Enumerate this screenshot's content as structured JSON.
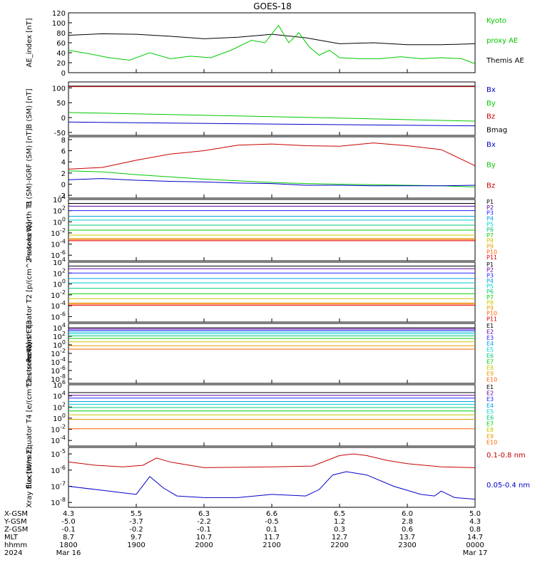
{
  "title": "GOES-18",
  "colors": {
    "black": "#000000",
    "green": "#00c800",
    "red": "#c80000",
    "blue": "#0000c8",
    "chan": [
      "#000000",
      "#6000a0",
      "#2020ff",
      "#00a0e0",
      "#00d0d0",
      "#00c878",
      "#00d000",
      "#c8c800",
      "#e0a000",
      "#ff6000",
      "#e00000",
      "#a00000"
    ]
  },
  "x_ticks": [
    "1800",
    "1900",
    "2000",
    "2100",
    "2200",
    "2300",
    "0000"
  ],
  "footer": {
    "row_labels": [
      "X-GSM",
      "Y-GSM",
      "Z-GSM",
      "MLT",
      "hhmm",
      "2024"
    ],
    "rows": [
      [
        "4.3",
        "5.5",
        "6.3",
        "6.6",
        "6.5",
        "6.0",
        "5.0"
      ],
      [
        "-5.0",
        "-3.7",
        "-2.2",
        "-0.5",
        "1.2",
        "2.8",
        "4.3"
      ],
      [
        "-0.1",
        "-0.2",
        "-0.1",
        "0.1",
        "0.3",
        "0.6",
        "0.8"
      ],
      [
        "8.7",
        "9.7",
        "10.7",
        "11.7",
        "12.7",
        "13.7",
        "14.7"
      ],
      [
        "1800",
        "1900",
        "2000",
        "2100",
        "2200",
        "2300",
        "0000"
      ]
    ],
    "date_start": "Mar 16",
    "date_end": "Mar 17"
  },
  "chart_data": [
    {
      "type": "line",
      "ylabel": "AE_index [nT]",
      "y_ticks": [
        "120",
        "100",
        "80",
        "60",
        "40",
        "20",
        "0"
      ],
      "ylim": [
        0,
        120
      ],
      "legend": [
        {
          "text": "Kyoto",
          "color": "#00c800"
        },
        {
          "text": "proxy AE",
          "color": "#00c800"
        },
        {
          "text": "Themis AE",
          "color": "#000000"
        }
      ],
      "series": [
        {
          "name": "Themis AE",
          "color": "#000000",
          "x": [
            0,
            0.5,
            1,
            1.5,
            2,
            2.5,
            3,
            3.5,
            4,
            4.5,
            5,
            5.5,
            6
          ],
          "y": [
            75,
            78,
            77,
            73,
            68,
            71,
            77,
            70,
            58,
            60,
            56,
            56,
            58
          ]
        },
        {
          "name": "Kyoto proxy AE",
          "color": "#00c800",
          "x": [
            0,
            0.3,
            0.6,
            0.9,
            1.2,
            1.5,
            1.8,
            2.1,
            2.4,
            2.7,
            2.9,
            3.1,
            3.25,
            3.4,
            3.55,
            3.7,
            3.85,
            4,
            4.3,
            4.6,
            4.9,
            5.2,
            5.5,
            5.8,
            6
          ],
          "y": [
            45,
            38,
            30,
            25,
            40,
            28,
            33,
            30,
            45,
            65,
            60,
            95,
            60,
            80,
            52,
            35,
            45,
            30,
            28,
            28,
            32,
            28,
            30,
            28,
            18
          ]
        }
      ]
    },
    {
      "type": "line",
      "ylabel": "B (SM) [nT]",
      "y_ticks": [
        "100",
        "50",
        "0",
        "-50"
      ],
      "ylim": [
        -60,
        120
      ],
      "legend": [
        {
          "text": "Bx",
          "color": "#0000c8"
        },
        {
          "text": "By",
          "color": "#00c800"
        },
        {
          "text": "Bz",
          "color": "#c80000"
        },
        {
          "text": "Bmag",
          "color": "#000000"
        }
      ],
      "series": [
        {
          "name": "Bmag",
          "color": "#000000",
          "x": [
            0,
            6
          ],
          "y": [
            106,
            106
          ]
        },
        {
          "name": "Bz",
          "color": "#c80000",
          "x": [
            0,
            6
          ],
          "y": [
            104,
            104
          ]
        },
        {
          "name": "By",
          "color": "#00c800",
          "x": [
            0,
            3,
            6
          ],
          "y": [
            17,
            3,
            -12
          ]
        },
        {
          "name": "Bx",
          "color": "#0000c8",
          "x": [
            0,
            3,
            6
          ],
          "y": [
            -15,
            -22,
            -28
          ]
        }
      ]
    },
    {
      "type": "line",
      "ylabel": "B (SM)-IGRF (SM) [nT]",
      "y_ticks": [
        "8",
        "6",
        "4",
        "2",
        "0",
        "-2"
      ],
      "ylim": [
        -2.5,
        8.5
      ],
      "legend": [
        {
          "text": "Bx",
          "color": "#0000c8"
        },
        {
          "text": "By",
          "color": "#00c800"
        },
        {
          "text": "Bz",
          "color": "#c80000"
        }
      ],
      "series": [
        {
          "name": "Bz",
          "color": "#c80000",
          "x": [
            0,
            0.5,
            1,
            1.5,
            2,
            2.5,
            3,
            3.5,
            4,
            4.5,
            5,
            5.5,
            6
          ],
          "y": [
            2.7,
            3.0,
            4.3,
            5.4,
            6.0,
            7.0,
            7.2,
            6.9,
            6.8,
            7.4,
            6.9,
            6.2,
            3.3
          ]
        },
        {
          "name": "By",
          "color": "#00c800",
          "x": [
            0,
            0.5,
            1,
            1.5,
            2,
            2.5,
            3,
            3.5,
            4,
            4.5,
            5,
            5.5,
            6
          ],
          "y": [
            2.4,
            2.2,
            1.7,
            1.3,
            0.9,
            0.6,
            0.3,
            0.1,
            0,
            -0.1,
            -0.2,
            -0.3,
            -0.5
          ]
        },
        {
          "name": "Bx",
          "color": "#0000c8",
          "x": [
            0,
            0.5,
            1,
            1.5,
            2,
            2.5,
            3,
            3.5,
            4,
            4.5,
            5,
            5.5,
            6
          ],
          "y": [
            0.8,
            1.0,
            0.7,
            0.5,
            0.4,
            0.2,
            0.1,
            -0.2,
            -0.2,
            -0.3,
            -0.3,
            -0.3,
            -0.2
          ]
        }
      ]
    },
    {
      "type": "line",
      "ylabel": "Protons North T1",
      "y_ticks": [
        "10^4",
        "10^2",
        "10^0",
        "10^-2",
        "10^-4",
        "10^-6"
      ],
      "log_exponents": [
        4,
        -7
      ],
      "legend": [
        "P1",
        "P2",
        "P3",
        "P4",
        "P5",
        "P6",
        "P7",
        "P8",
        "P9",
        "P10",
        "P11"
      ],
      "levels_log10": [
        3.3,
        2.8,
        2.0,
        1.0,
        0.3,
        -0.6,
        -1.5,
        -2.4,
        -3.0,
        -3.2,
        -3.4
      ]
    },
    {
      "type": "line",
      "ylabel": "Protons Equator T2 [p/(cm^2-s-sr-keV)]",
      "y_ticks": [
        "10^4",
        "10^2",
        "10^0",
        "10^-2",
        "10^-4",
        "10^-6"
      ],
      "log_exponents": [
        4,
        -7
      ],
      "legend": [
        "P1",
        "P2",
        "P3",
        "P4",
        "P5",
        "P6",
        "P7",
        "P8",
        "P9",
        "P10",
        "P11"
      ],
      "levels_log10": [
        3.3,
        2.8,
        2.0,
        1.0,
        0.2,
        -0.8,
        -1.8,
        -2.7,
        -3.5,
        -3.7,
        -3.9
      ]
    },
    {
      "type": "line",
      "ylabel": "Electrons North T3",
      "y_ticks": [
        "10^4",
        "10^2",
        "10^0",
        "10^-2",
        "10^-4",
        "10^-6",
        "10^-8"
      ],
      "log_exponents": [
        5,
        -9
      ],
      "legend": [
        "E1",
        "E2",
        "E3",
        "E4",
        "E5",
        "E6",
        "E7",
        "E8",
        "E9",
        "E10"
      ],
      "levels_log10": [
        4.0,
        3.7,
        3.4,
        3.0,
        2.6,
        2.1,
        1.5,
        0.7,
        -0.2,
        -1.0
      ]
    },
    {
      "type": "line",
      "ylabel": "Electrons Equator T4 [e/(cm^2-s-sr-keV)]",
      "y_ticks": [
        "10^6",
        "10^4",
        "10^2",
        "10^0",
        "10^-2",
        "10^-4"
      ],
      "log_exponents": [
        6,
        -5
      ],
      "legend": [
        "E1",
        "E2",
        "E3",
        "E4",
        "E5",
        "E6",
        "E7",
        "E8",
        "E9",
        "E10"
      ],
      "levels_log10": [
        4.6,
        4.1,
        3.6,
        3.0,
        2.5,
        1.9,
        1.3,
        0.6,
        -0.2,
        -1.9
      ]
    },
    {
      "type": "line",
      "ylabel": "Xray flux [W/m2]",
      "y_ticks": [
        "10^-5",
        "10^-6",
        "10^-7",
        "10^-8"
      ],
      "log_exponents": [
        -4.6,
        -8.3
      ],
      "legend": [
        {
          "text": "0.1-0.8 nm",
          "color": "#c80000"
        },
        {
          "text": "0.05-0.4 nm",
          "color": "#0000c8"
        }
      ],
      "series": [
        {
          "name": "0.1-0.8 nm",
          "color": "#c80000",
          "x": [
            0,
            0.4,
            0.8,
            1.1,
            1.3,
            1.5,
            2,
            3,
            3.6,
            4,
            4.2,
            4.4,
            4.7,
            5,
            5.5,
            6
          ],
          "y": [
            -5.5,
            -5.7,
            -5.8,
            -5.7,
            -5.25,
            -5.5,
            -5.85,
            -5.8,
            -5.75,
            -5.1,
            -5.0,
            -5.1,
            -5.4,
            -5.6,
            -5.8,
            -5.85
          ]
        },
        {
          "name": "0.05-0.4 nm",
          "color": "#0000c8",
          "x": [
            0,
            0.4,
            0.8,
            1.0,
            1.2,
            1.4,
            1.6,
            2,
            2.5,
            3,
            3.5,
            3.7,
            3.9,
            4.1,
            4.4,
            4.8,
            5.2,
            5.4,
            5.5,
            5.7,
            6
          ],
          "y": [
            -7.0,
            -7.2,
            -7.4,
            -7.5,
            -6.4,
            -7.1,
            -7.6,
            -7.7,
            -7.7,
            -7.5,
            -7.6,
            -7.2,
            -6.3,
            -6.1,
            -6.3,
            -7.0,
            -7.5,
            -7.6,
            -7.3,
            -7.7,
            -7.8
          ]
        }
      ]
    }
  ]
}
